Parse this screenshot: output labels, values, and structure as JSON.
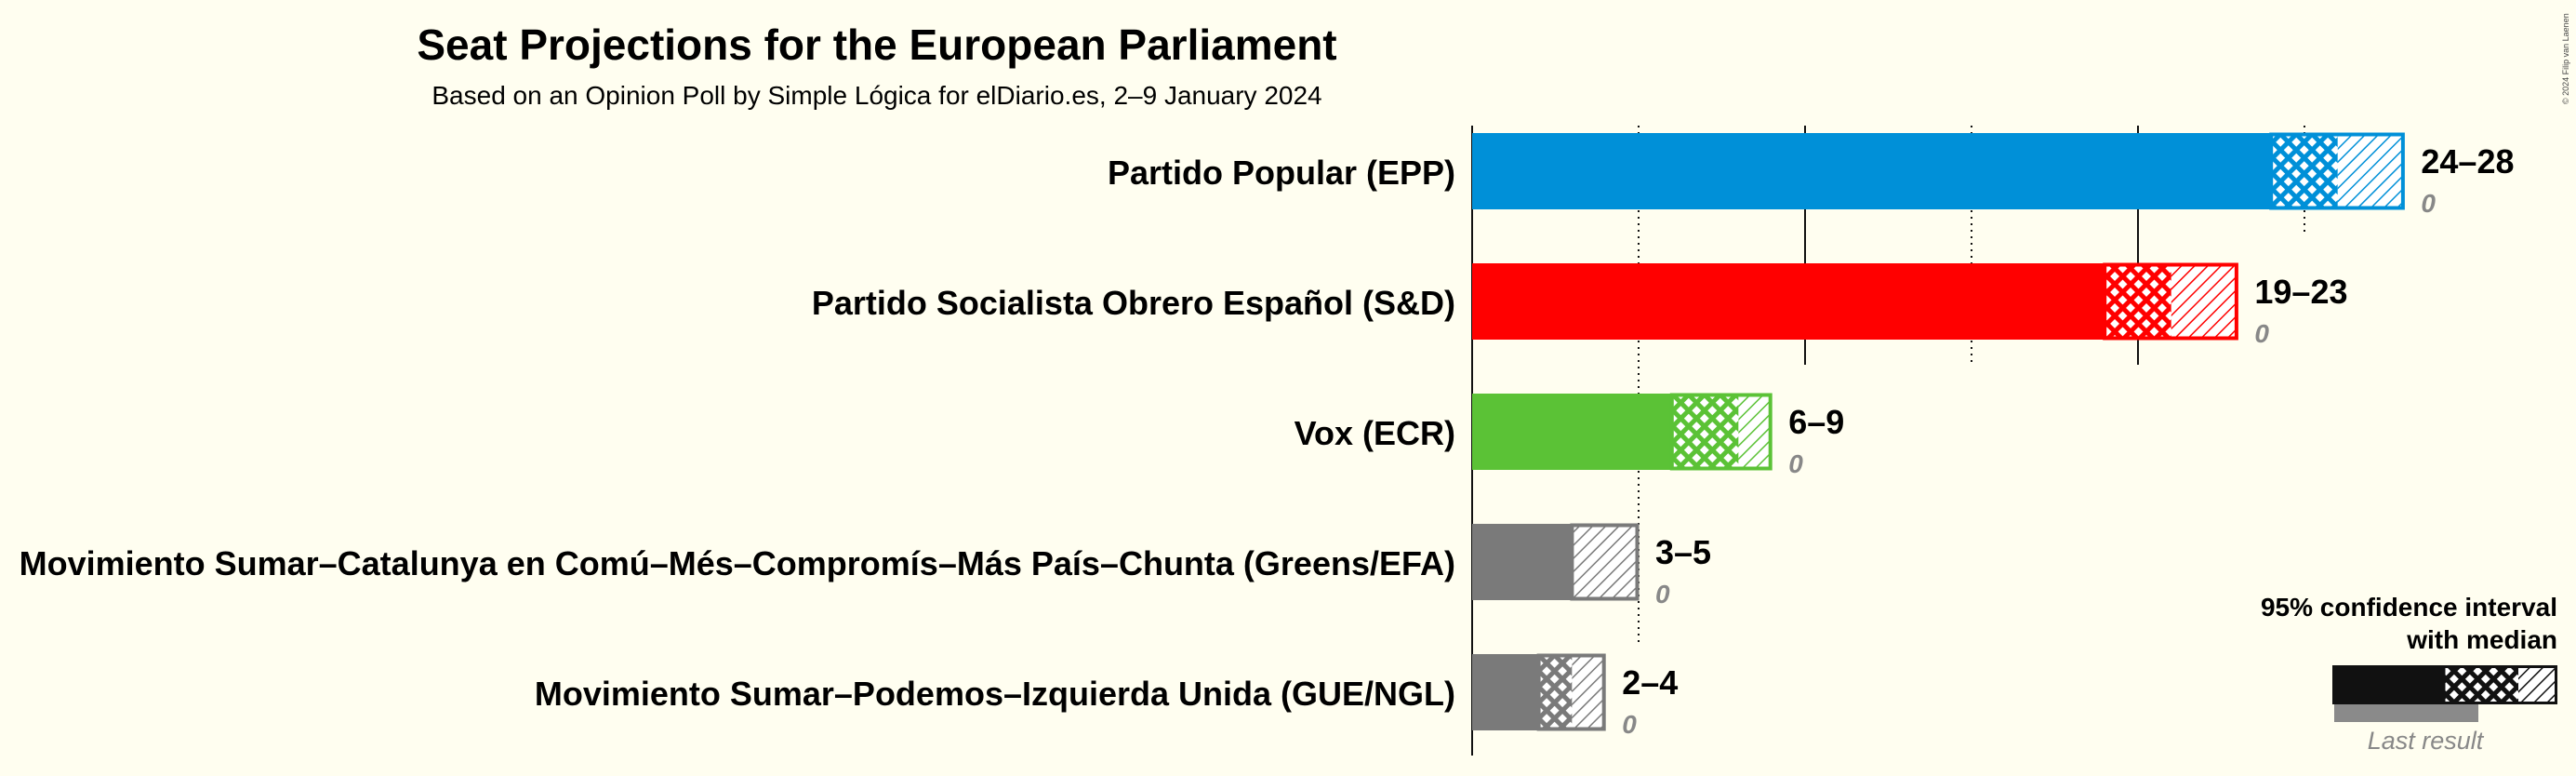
{
  "copyright": "© 2024 Filip van Laenen",
  "chart_data": {
    "type": "bar",
    "orientation": "horizontal",
    "title": "Seat Projections for the European Parliament",
    "subtitle": "Based on an Opinion Poll by Simple Lógica for elDiario.es, 2–9 January 2024",
    "x_range": [
      0,
      28
    ],
    "gridlines_solid": [
      0,
      10,
      20
    ],
    "gridlines_dotted": [
      5,
      15,
      25
    ],
    "series": [
      {
        "name": "Partido Popular (EPP)",
        "color": "#0090D8",
        "low": 24,
        "median": 26,
        "high": 28,
        "range_label": "24–28",
        "last_result": 0,
        "last_label": "0"
      },
      {
        "name": "Partido Socialista Obrero Español (S&D)",
        "color": "#FF0000",
        "low": 19,
        "median": 21,
        "high": 23,
        "range_label": "19–23",
        "last_result": 0,
        "last_label": "0"
      },
      {
        "name": "Vox (ECR)",
        "color": "#5BC236",
        "low": 6,
        "median": 8,
        "high": 9,
        "range_label": "6–9",
        "last_result": 0,
        "last_label": "0"
      },
      {
        "name": "Movimiento Sumar–Catalunya en Comú–Més–Compromís–Más País–Chunta (Greens/EFA)",
        "color": "#7A7A7A",
        "low": 3,
        "median": 3,
        "high": 5,
        "range_label": "3–5",
        "last_result": 0,
        "last_label": "0"
      },
      {
        "name": "Movimiento Sumar–Podemos–Izquierda Unida (GUE/NGL)",
        "color": "#7A7A7A",
        "low": 2,
        "median": 3,
        "high": 4,
        "range_label": "2–4",
        "last_result": 0,
        "last_label": "0"
      }
    ],
    "legend": {
      "line1": "95% confidence interval",
      "line2": "with median",
      "last_result_label": "Last result",
      "placement": "bottom-right"
    }
  }
}
